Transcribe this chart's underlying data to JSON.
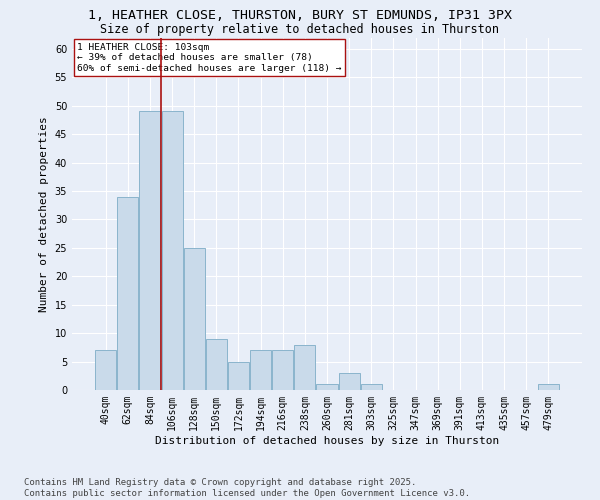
{
  "title_line1": "1, HEATHER CLOSE, THURSTON, BURY ST EDMUNDS, IP31 3PX",
  "title_line2": "Size of property relative to detached houses in Thurston",
  "xlabel": "Distribution of detached houses by size in Thurston",
  "ylabel": "Number of detached properties",
  "categories": [
    "40sqm",
    "62sqm",
    "84sqm",
    "106sqm",
    "128sqm",
    "150sqm",
    "172sqm",
    "194sqm",
    "216sqm",
    "238sqm",
    "260sqm",
    "281sqm",
    "303sqm",
    "325sqm",
    "347sqm",
    "369sqm",
    "391sqm",
    "413sqm",
    "435sqm",
    "457sqm",
    "479sqm"
  ],
  "values": [
    7,
    34,
    49,
    49,
    25,
    9,
    5,
    7,
    7,
    8,
    1,
    3,
    1,
    0,
    0,
    0,
    0,
    0,
    0,
    0,
    1
  ],
  "bar_color": "#c9daea",
  "bar_edge_color": "#8ab4cc",
  "vline_index": 2.5,
  "vline_color": "#aa1111",
  "annotation_text": "1 HEATHER CLOSE: 103sqm\n← 39% of detached houses are smaller (78)\n60% of semi-detached houses are larger (118) →",
  "annotation_box_color": "#ffffff",
  "annotation_box_edge": "#aa1111",
  "ylim": [
    0,
    62
  ],
  "yticks": [
    0,
    5,
    10,
    15,
    20,
    25,
    30,
    35,
    40,
    45,
    50,
    55,
    60
  ],
  "background_color": "#e8eef8",
  "grid_color": "#ffffff",
  "footer": "Contains HM Land Registry data © Crown copyright and database right 2025.\nContains public sector information licensed under the Open Government Licence v3.0.",
  "title_fontsize": 9.5,
  "subtitle_fontsize": 8.5,
  "axis_label_fontsize": 8,
  "tick_fontsize": 7,
  "footer_fontsize": 6.5,
  "annotation_fontsize": 6.8
}
